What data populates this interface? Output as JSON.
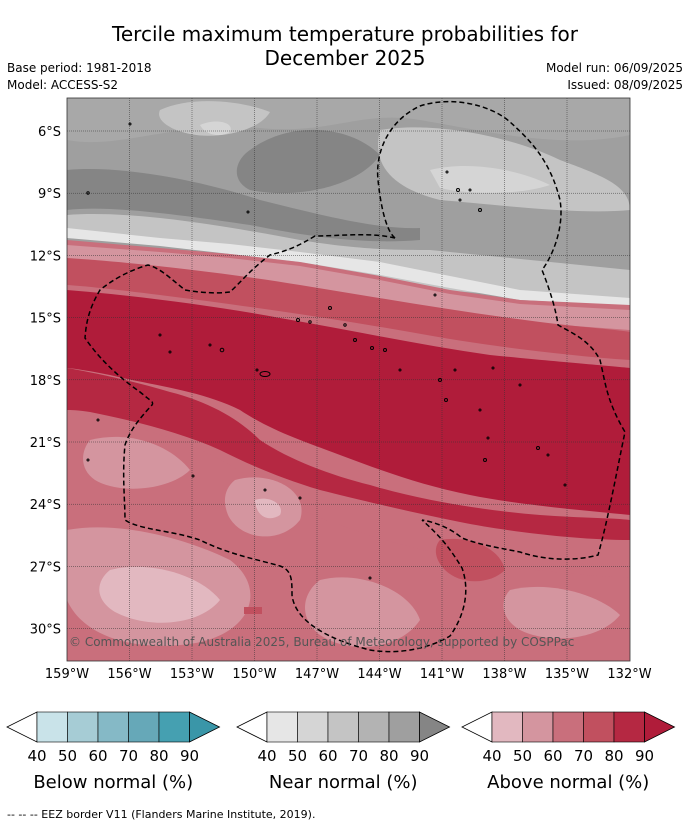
{
  "title_line1": "Tercile maximum temperature probabilities for",
  "title_line2": "December 2025",
  "base_period": "Base period: 1981-2018",
  "model": "Model: ACCESS-S2",
  "model_run": "Model run: 06/09/2025",
  "issued": "Issued: 08/09/2025",
  "copyright": "© Commonwealth of Australia 2025, Bureau of Meteorology, supported by COSPPac",
  "lat_ticks": [
    "6°S",
    "9°S",
    "12°S",
    "15°S",
    "18°S",
    "21°S",
    "24°S",
    "27°S",
    "30°S"
  ],
  "lon_ticks": [
    "159°W",
    "156°W",
    "153°W",
    "150°W",
    "147°W",
    "144°W",
    "141°W",
    "138°W",
    "135°W",
    "132°W"
  ],
  "colors": {
    "above": [
      "#ffffff",
      "#e2b8c0",
      "#d4959f",
      "#c96f7c",
      "#c1505f",
      "#b52842",
      "#b01c3a"
    ],
    "near": [
      "#ffffff",
      "#e6e6e6",
      "#d5d5d5",
      "#c4c4c4",
      "#b3b3b3",
      "#9f9f9f",
      "#858585"
    ],
    "below": [
      "#ffffff",
      "#c9e3e9",
      "#a6ccd5",
      "#85b9c6",
      "#66a8b8",
      "#45a0b1",
      "#3a96a8"
    ]
  },
  "legends": [
    {
      "title": "Below normal (%)",
      "ticks": [
        "40",
        "50",
        "60",
        "70",
        "80",
        "90"
      ],
      "palette": "below"
    },
    {
      "title": "Near normal (%)",
      "ticks": [
        "40",
        "50",
        "60",
        "70",
        "80",
        "90"
      ],
      "palette": "near"
    },
    {
      "title": "Above normal (%)",
      "ticks": [
        "40",
        "50",
        "60",
        "70",
        "80",
        "90"
      ],
      "palette": "above"
    }
  ],
  "footer": "--  --  -- EEZ border V11 (Flanders Marine Institute, 2019)."
}
